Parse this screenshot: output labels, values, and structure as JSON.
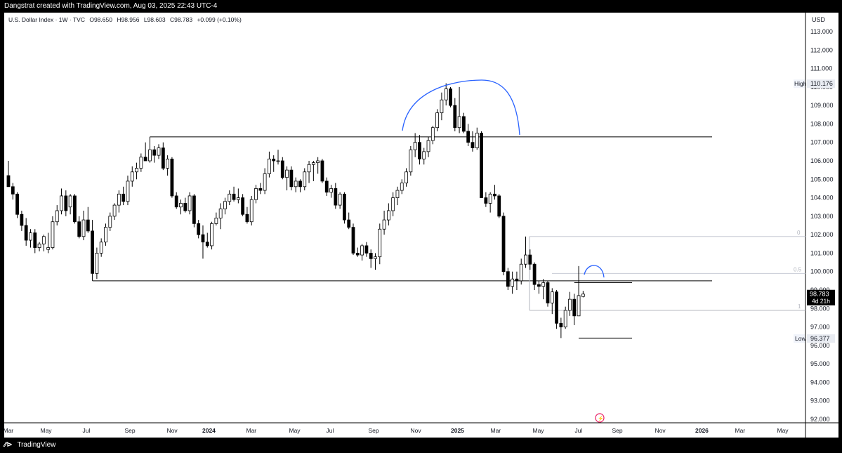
{
  "header": {
    "attribution": "Dangstrat created with TradingView.com, Aug 03, 2025 22:43 UTC-4"
  },
  "legend": {
    "symbol": "U.S. Dollar Index · 1W · TVC",
    "open": "O98.650",
    "high": "H98.956",
    "low": "L98.603",
    "close": "C98.783",
    "change": "+0.099 (+0.10%)"
  },
  "price_axis": {
    "currency": "USD",
    "ticks": [
      "113.000",
      "112.000",
      "111.000",
      "110.000",
      "109.000",
      "108.000",
      "107.000",
      "106.000",
      "105.000",
      "104.000",
      "103.000",
      "102.000",
      "101.000",
      "100.000",
      "99.000",
      "98.000",
      "97.000",
      "96.000",
      "95.000",
      "94.000",
      "93.000",
      "92.000"
    ],
    "high_label": "High",
    "high_value": "110.176",
    "low_label": "Low",
    "low_value": "96.377",
    "last_price": "98.783",
    "countdown": "4d 21h"
  },
  "fib_labels": [
    "0",
    "0.5",
    "1"
  ],
  "time_axis": {
    "labels": [
      "Mar",
      "May",
      "Jul",
      "Sep",
      "Nov",
      "2024",
      "Mar",
      "May",
      "Jul",
      "Sep",
      "Nov",
      "2025",
      "Mar",
      "May",
      "Jul",
      "Sep",
      "Nov",
      "2026",
      "Mar",
      "May"
    ],
    "bold": [
      "2024",
      "2025",
      "2026"
    ]
  },
  "footer": {
    "brand": "TradingView"
  },
  "chart_data": {
    "type": "candlestick",
    "title": "U.S. Dollar Index",
    "timeframe": "1W",
    "source": "TVC",
    "ylim": [
      91.8,
      113.5
    ],
    "colors": {
      "up": "#ffffff",
      "down": "#000000",
      "wick": "#000000",
      "annotation": "#2962ff"
    },
    "candles": [
      {
        "o": 105.2,
        "h": 106.0,
        "l": 104.6,
        "c": 104.6
      },
      {
        "o": 104.6,
        "h": 104.8,
        "l": 103.9,
        "c": 104.2
      },
      {
        "o": 104.2,
        "h": 104.3,
        "l": 102.9,
        "c": 103.1
      },
      {
        "o": 103.1,
        "h": 103.3,
        "l": 102.2,
        "c": 102.5
      },
      {
        "o": 102.5,
        "h": 102.9,
        "l": 101.4,
        "c": 101.7
      },
      {
        "o": 101.7,
        "h": 102.3,
        "l": 101.3,
        "c": 102.1
      },
      {
        "o": 102.1,
        "h": 102.3,
        "l": 101.0,
        "c": 101.3
      },
      {
        "o": 101.3,
        "h": 101.6,
        "l": 101.1,
        "c": 101.5
      },
      {
        "o": 101.5,
        "h": 102.0,
        "l": 101.1,
        "c": 101.9
      },
      {
        "o": 101.2,
        "h": 102.1,
        "l": 101.0,
        "c": 101.3
      },
      {
        "o": 101.3,
        "h": 103.0,
        "l": 101.2,
        "c": 102.7
      },
      {
        "o": 102.7,
        "h": 103.6,
        "l": 102.5,
        "c": 103.3
      },
      {
        "o": 103.3,
        "h": 104.5,
        "l": 103.1,
        "c": 104.1
      },
      {
        "o": 104.1,
        "h": 104.4,
        "l": 103.0,
        "c": 103.3
      },
      {
        "o": 103.5,
        "h": 104.2,
        "l": 103.1,
        "c": 104.1
      },
      {
        "o": 104.1,
        "h": 104.2,
        "l": 102.6,
        "c": 102.7
      },
      {
        "o": 102.7,
        "h": 103.0,
        "l": 101.8,
        "c": 101.9
      },
      {
        "o": 101.9,
        "h": 103.3,
        "l": 101.7,
        "c": 102.8
      },
      {
        "o": 102.8,
        "h": 103.5,
        "l": 102.1,
        "c": 102.2
      },
      {
        "o": 102.2,
        "h": 102.8,
        "l": 99.5,
        "c": 99.9
      },
      {
        "o": 99.9,
        "h": 101.3,
        "l": 99.6,
        "c": 101.0
      },
      {
        "o": 101.0,
        "h": 101.8,
        "l": 100.8,
        "c": 101.6
      },
      {
        "o": 101.6,
        "h": 102.6,
        "l": 101.4,
        "c": 102.4
      },
      {
        "o": 102.4,
        "h": 103.2,
        "l": 102.2,
        "c": 103.0
      },
      {
        "o": 103.0,
        "h": 103.7,
        "l": 102.8,
        "c": 103.6
      },
      {
        "o": 103.6,
        "h": 104.4,
        "l": 103.2,
        "c": 104.2
      },
      {
        "o": 104.2,
        "h": 104.6,
        "l": 103.6,
        "c": 103.8
      },
      {
        "o": 103.8,
        "h": 105.2,
        "l": 103.6,
        "c": 104.9
      },
      {
        "o": 104.9,
        "h": 105.7,
        "l": 104.6,
        "c": 105.4
      },
      {
        "o": 105.4,
        "h": 105.9,
        "l": 105.0,
        "c": 105.6
      },
      {
        "o": 105.6,
        "h": 106.4,
        "l": 105.4,
        "c": 106.2
      },
      {
        "o": 106.2,
        "h": 107.0,
        "l": 106.0,
        "c": 106.0
      },
      {
        "o": 106.0,
        "h": 107.3,
        "l": 105.9,
        "c": 106.6
      },
      {
        "o": 106.6,
        "h": 106.8,
        "l": 105.9,
        "c": 106.3
      },
      {
        "o": 106.3,
        "h": 106.9,
        "l": 106.1,
        "c": 106.7
      },
      {
        "o": 106.7,
        "h": 107.0,
        "l": 105.5,
        "c": 105.6
      },
      {
        "o": 105.6,
        "h": 106.3,
        "l": 105.2,
        "c": 106.1
      },
      {
        "o": 106.1,
        "h": 106.2,
        "l": 104.0,
        "c": 104.1
      },
      {
        "o": 104.1,
        "h": 104.3,
        "l": 103.4,
        "c": 103.5
      },
      {
        "o": 103.5,
        "h": 103.9,
        "l": 103.1,
        "c": 103.7
      },
      {
        "o": 103.7,
        "h": 104.0,
        "l": 103.2,
        "c": 103.3
      },
      {
        "o": 103.3,
        "h": 104.3,
        "l": 103.1,
        "c": 104.1
      },
      {
        "o": 104.1,
        "h": 104.2,
        "l": 102.4,
        "c": 102.6
      },
      {
        "o": 102.6,
        "h": 102.8,
        "l": 101.8,
        "c": 102.0
      },
      {
        "o": 102.0,
        "h": 102.5,
        "l": 100.7,
        "c": 101.6
      },
      {
        "o": 101.6,
        "h": 102.1,
        "l": 101.3,
        "c": 101.4
      },
      {
        "o": 101.4,
        "h": 102.7,
        "l": 101.2,
        "c": 102.6
      },
      {
        "o": 102.6,
        "h": 103.2,
        "l": 102.5,
        "c": 102.9
      },
      {
        "o": 102.9,
        "h": 103.7,
        "l": 102.3,
        "c": 103.4
      },
      {
        "o": 103.4,
        "h": 104.0,
        "l": 103.1,
        "c": 103.8
      },
      {
        "o": 103.8,
        "h": 104.4,
        "l": 103.6,
        "c": 104.2
      },
      {
        "o": 104.2,
        "h": 104.6,
        "l": 103.8,
        "c": 103.9
      },
      {
        "o": 103.9,
        "h": 104.5,
        "l": 103.7,
        "c": 104.0
      },
      {
        "o": 104.0,
        "h": 104.2,
        "l": 103.0,
        "c": 103.1
      },
      {
        "o": 103.1,
        "h": 103.5,
        "l": 102.6,
        "c": 102.7
      },
      {
        "o": 102.7,
        "h": 104.1,
        "l": 102.5,
        "c": 103.9
      },
      {
        "o": 103.9,
        "h": 104.7,
        "l": 103.7,
        "c": 104.5
      },
      {
        "o": 104.5,
        "h": 104.8,
        "l": 104.2,
        "c": 104.4
      },
      {
        "o": 104.4,
        "h": 105.6,
        "l": 104.2,
        "c": 105.3
      },
      {
        "o": 105.3,
        "h": 106.5,
        "l": 105.1,
        "c": 106.1
      },
      {
        "o": 106.1,
        "h": 106.3,
        "l": 105.4,
        "c": 106.0
      },
      {
        "o": 106.0,
        "h": 106.6,
        "l": 105.8,
        "c": 106.0
      },
      {
        "o": 106.0,
        "h": 106.2,
        "l": 105.0,
        "c": 105.1
      },
      {
        "o": 105.1,
        "h": 105.7,
        "l": 104.4,
        "c": 105.5
      },
      {
        "o": 105.5,
        "h": 105.7,
        "l": 104.4,
        "c": 104.6
      },
      {
        "o": 104.6,
        "h": 105.1,
        "l": 104.3,
        "c": 104.9
      },
      {
        "o": 104.9,
        "h": 105.0,
        "l": 104.3,
        "c": 104.6
      },
      {
        "o": 104.6,
        "h": 105.6,
        "l": 104.4,
        "c": 105.4
      },
      {
        "o": 105.4,
        "h": 106.0,
        "l": 104.8,
        "c": 105.8
      },
      {
        "o": 105.8,
        "h": 106.0,
        "l": 104.9,
        "c": 105.9
      },
      {
        "o": 105.9,
        "h": 106.2,
        "l": 105.3,
        "c": 106.0
      },
      {
        "o": 106.0,
        "h": 106.1,
        "l": 104.8,
        "c": 104.9
      },
      {
        "o": 104.9,
        "h": 105.1,
        "l": 104.1,
        "c": 104.3
      },
      {
        "o": 104.3,
        "h": 104.7,
        "l": 104.0,
        "c": 104.5
      },
      {
        "o": 104.5,
        "h": 104.8,
        "l": 103.4,
        "c": 103.6
      },
      {
        "o": 103.6,
        "h": 104.3,
        "l": 103.4,
        "c": 104.2
      },
      {
        "o": 104.2,
        "h": 104.3,
        "l": 102.6,
        "c": 102.8
      },
      {
        "o": 102.8,
        "h": 103.2,
        "l": 102.3,
        "c": 102.4
      },
      {
        "o": 102.4,
        "h": 102.6,
        "l": 100.9,
        "c": 101.0
      },
      {
        "o": 101.0,
        "h": 101.3,
        "l": 100.8,
        "c": 100.9
      },
      {
        "o": 100.9,
        "h": 101.5,
        "l": 100.6,
        "c": 101.4
      },
      {
        "o": 101.4,
        "h": 101.6,
        "l": 100.8,
        "c": 101.0
      },
      {
        "o": 101.0,
        "h": 101.2,
        "l": 100.2,
        "c": 100.7
      },
      {
        "o": 100.7,
        "h": 101.0,
        "l": 100.1,
        "c": 100.8
      },
      {
        "o": 100.8,
        "h": 102.6,
        "l": 100.4,
        "c": 102.3
      },
      {
        "o": 102.3,
        "h": 103.3,
        "l": 102.0,
        "c": 102.8
      },
      {
        "o": 102.8,
        "h": 103.7,
        "l": 102.5,
        "c": 103.3
      },
      {
        "o": 103.3,
        "h": 104.3,
        "l": 103.0,
        "c": 104.0
      },
      {
        "o": 104.0,
        "h": 104.6,
        "l": 103.6,
        "c": 104.4
      },
      {
        "o": 104.4,
        "h": 105.0,
        "l": 104.2,
        "c": 104.8
      },
      {
        "o": 104.8,
        "h": 105.6,
        "l": 104.6,
        "c": 105.4
      },
      {
        "o": 105.4,
        "h": 106.8,
        "l": 105.2,
        "c": 106.6
      },
      {
        "o": 106.6,
        "h": 107.5,
        "l": 106.2,
        "c": 107.0
      },
      {
        "o": 107.0,
        "h": 107.4,
        "l": 105.8,
        "c": 106.1
      },
      {
        "o": 106.1,
        "h": 106.7,
        "l": 105.8,
        "c": 106.5
      },
      {
        "o": 106.5,
        "h": 107.3,
        "l": 106.2,
        "c": 107.1
      },
      {
        "o": 107.1,
        "h": 107.9,
        "l": 106.9,
        "c": 107.8
      },
      {
        "o": 107.8,
        "h": 108.8,
        "l": 107.6,
        "c": 108.6
      },
      {
        "o": 108.6,
        "h": 109.7,
        "l": 108.2,
        "c": 109.3
      },
      {
        "o": 109.3,
        "h": 110.2,
        "l": 109.0,
        "c": 109.9
      },
      {
        "o": 109.9,
        "h": 110.0,
        "l": 108.9,
        "c": 109.0
      },
      {
        "o": 109.0,
        "h": 109.4,
        "l": 107.6,
        "c": 107.8
      },
      {
        "o": 107.8,
        "h": 110.0,
        "l": 107.5,
        "c": 108.4
      },
      {
        "o": 108.4,
        "h": 108.6,
        "l": 107.5,
        "c": 107.6
      },
      {
        "o": 107.6,
        "h": 108.0,
        "l": 106.8,
        "c": 107.0
      },
      {
        "o": 107.0,
        "h": 107.6,
        "l": 106.5,
        "c": 106.7
      },
      {
        "o": 106.7,
        "h": 107.8,
        "l": 106.6,
        "c": 107.5
      },
      {
        "o": 107.5,
        "h": 107.6,
        "l": 104.2,
        "c": 104.0
      },
      {
        "o": 104.0,
        "h": 104.3,
        "l": 103.5,
        "c": 103.7
      },
      {
        "o": 103.7,
        "h": 104.3,
        "l": 103.2,
        "c": 104.2
      },
      {
        "o": 104.2,
        "h": 104.7,
        "l": 103.9,
        "c": 104.1
      },
      {
        "o": 104.1,
        "h": 104.2,
        "l": 102.9,
        "c": 103.0
      },
      {
        "o": 103.0,
        "h": 103.2,
        "l": 99.8,
        "c": 100.0
      },
      {
        "o": 100.0,
        "h": 100.2,
        "l": 99.0,
        "c": 99.2
      },
      {
        "o": 99.2,
        "h": 100.0,
        "l": 98.8,
        "c": 99.6
      },
      {
        "o": 99.6,
        "h": 100.0,
        "l": 99.0,
        "c": 99.5
      },
      {
        "o": 99.5,
        "h": 100.7,
        "l": 99.3,
        "c": 100.4
      },
      {
        "o": 100.4,
        "h": 101.9,
        "l": 100.2,
        "c": 100.9
      },
      {
        "o": 100.9,
        "h": 101.2,
        "l": 100.1,
        "c": 100.4
      },
      {
        "o": 100.4,
        "h": 100.5,
        "l": 99.0,
        "c": 99.3
      },
      {
        "o": 99.3,
        "h": 99.5,
        "l": 98.8,
        "c": 99.2
      },
      {
        "o": 99.2,
        "h": 99.6,
        "l": 98.5,
        "c": 99.4
      },
      {
        "o": 99.4,
        "h": 99.5,
        "l": 98.1,
        "c": 98.3
      },
      {
        "o": 98.3,
        "h": 99.1,
        "l": 97.7,
        "c": 98.9
      },
      {
        "o": 98.9,
        "h": 99.0,
        "l": 96.9,
        "c": 97.2
      },
      {
        "o": 97.2,
        "h": 97.5,
        "l": 96.4,
        "c": 97.0
      },
      {
        "o": 97.0,
        "h": 98.1,
        "l": 96.9,
        "c": 97.9
      },
      {
        "o": 97.9,
        "h": 98.9,
        "l": 97.6,
        "c": 98.5
      },
      {
        "o": 98.5,
        "h": 98.8,
        "l": 97.1,
        "c": 97.6
      },
      {
        "o": 97.6,
        "h": 100.3,
        "l": 97.6,
        "c": 98.7
      },
      {
        "o": 98.65,
        "h": 98.956,
        "l": 98.603,
        "c": 98.783
      }
    ]
  }
}
